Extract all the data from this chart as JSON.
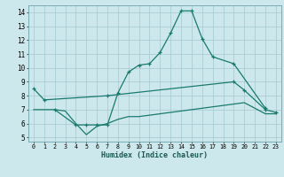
{
  "xlabel": "Humidex (Indice chaleur)",
  "background_color": "#cce8ec",
  "grid_color": "#aacdd4",
  "line_color": "#1a7a6e",
  "xlim_min": -0.5,
  "xlim_max": 23.5,
  "ylim_min": 4.7,
  "ylim_max": 14.5,
  "xticks": [
    0,
    1,
    2,
    3,
    4,
    5,
    6,
    7,
    8,
    9,
    10,
    11,
    12,
    13,
    14,
    15,
    16,
    17,
    18,
    19,
    20,
    21,
    22,
    23
  ],
  "yticks": [
    5,
    6,
    7,
    8,
    9,
    10,
    11,
    12,
    13,
    14
  ],
  "series1_y": [
    8.5,
    7.7,
    null,
    null,
    null,
    null,
    null,
    8.0,
    null,
    null,
    null,
    null,
    null,
    null,
    null,
    null,
    null,
    null,
    null,
    9.0,
    8.4,
    null,
    7.0,
    6.8
  ],
  "series2_y": [
    null,
    null,
    7.0,
    null,
    5.9,
    5.9,
    5.9,
    5.9,
    8.2,
    9.7,
    10.2,
    10.3,
    11.1,
    12.5,
    14.1,
    14.1,
    12.1,
    10.8,
    null,
    10.3,
    null,
    null,
    7.1,
    null
  ],
  "series3_y": [
    7.0,
    7.0,
    7.0,
    6.9,
    6.0,
    5.2,
    5.8,
    6.0,
    6.3,
    6.5,
    6.5,
    6.6,
    6.7,
    6.8,
    6.9,
    7.0,
    7.1,
    7.2,
    7.3,
    7.4,
    7.5,
    null,
    6.7,
    6.7
  ],
  "xlabel_fontsize": 6.0,
  "tick_fontsize_x": 4.8,
  "tick_fontsize_y": 5.5
}
